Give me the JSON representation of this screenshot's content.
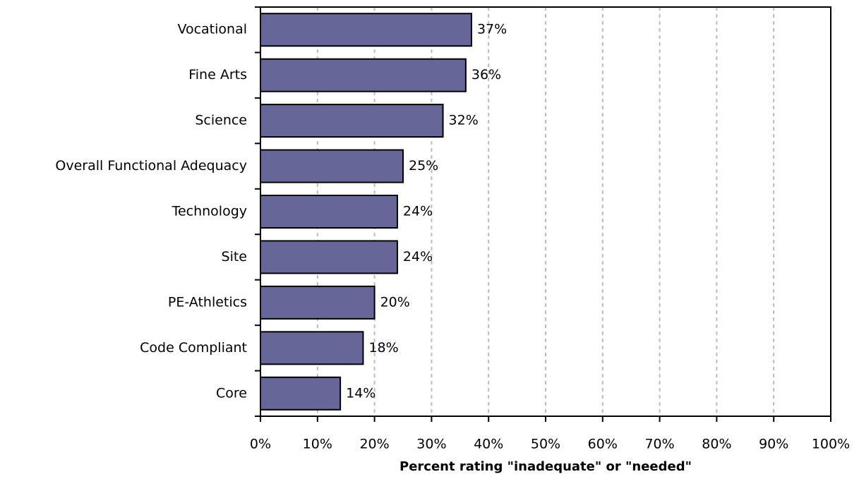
{
  "chart_data": {
    "type": "bar",
    "orientation": "horizontal",
    "x_label": "Percent rating \"inadequate\" or \"needed\"",
    "categories": [
      "Vocational",
      "Fine Arts",
      "Science",
      "Overall Functional Adequacy",
      "Technology",
      "Site",
      "PE-Athletics",
      "Code Compliant",
      "Core"
    ],
    "values": [
      37,
      36,
      32,
      25,
      24,
      24,
      20,
      18,
      14
    ],
    "value_labels": [
      "37%",
      "36%",
      "32%",
      "25%",
      "24%",
      "24%",
      "20%",
      "18%",
      "14%"
    ],
    "color": "#666699",
    "xlim": [
      0,
      100
    ],
    "xticks": [
      {
        "value": 0,
        "label": "0%"
      },
      {
        "value": 10,
        "label": "10%"
      },
      {
        "value": 20,
        "label": "20%"
      },
      {
        "value": 30,
        "label": "30%"
      },
      {
        "value": 40,
        "label": "40%"
      },
      {
        "value": 50,
        "label": "50%"
      },
      {
        "value": 60,
        "label": "60%"
      },
      {
        "value": 70,
        "label": "70%"
      },
      {
        "value": 80,
        "label": "80%"
      },
      {
        "value": 90,
        "label": "90%"
      },
      {
        "value": 100,
        "label": "100%"
      }
    ],
    "grid": true
  }
}
